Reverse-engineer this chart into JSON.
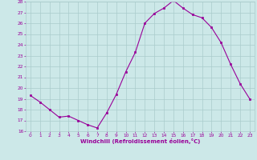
{
  "x": [
    0,
    1,
    2,
    3,
    4,
    5,
    6,
    7,
    8,
    9,
    10,
    11,
    12,
    13,
    14,
    15,
    16,
    17,
    18,
    19,
    20,
    21,
    22,
    23
  ],
  "y": [
    19.3,
    18.7,
    18.0,
    17.3,
    17.4,
    17.0,
    16.6,
    16.3,
    17.7,
    19.4,
    21.5,
    23.3,
    26.0,
    26.9,
    27.4,
    28.1,
    27.4,
    26.8,
    26.5,
    25.6,
    24.2,
    22.2,
    20.4,
    19.0
  ],
  "xlabel": "Windchill (Refroidissement éolien,°C)",
  "ylim": [
    16,
    28
  ],
  "xlim": [
    -0.5,
    23.5
  ],
  "yticks": [
    16,
    17,
    18,
    19,
    20,
    21,
    22,
    23,
    24,
    25,
    26,
    27,
    28
  ],
  "xticks": [
    0,
    1,
    2,
    3,
    4,
    5,
    6,
    7,
    8,
    9,
    10,
    11,
    12,
    13,
    14,
    15,
    16,
    17,
    18,
    19,
    20,
    21,
    22,
    23
  ],
  "line_color": "#990099",
  "marker_color": "#990099",
  "bg_color": "#cce8e8",
  "grid_color": "#aacccc",
  "label_color": "#990099",
  "tick_color": "#990099"
}
